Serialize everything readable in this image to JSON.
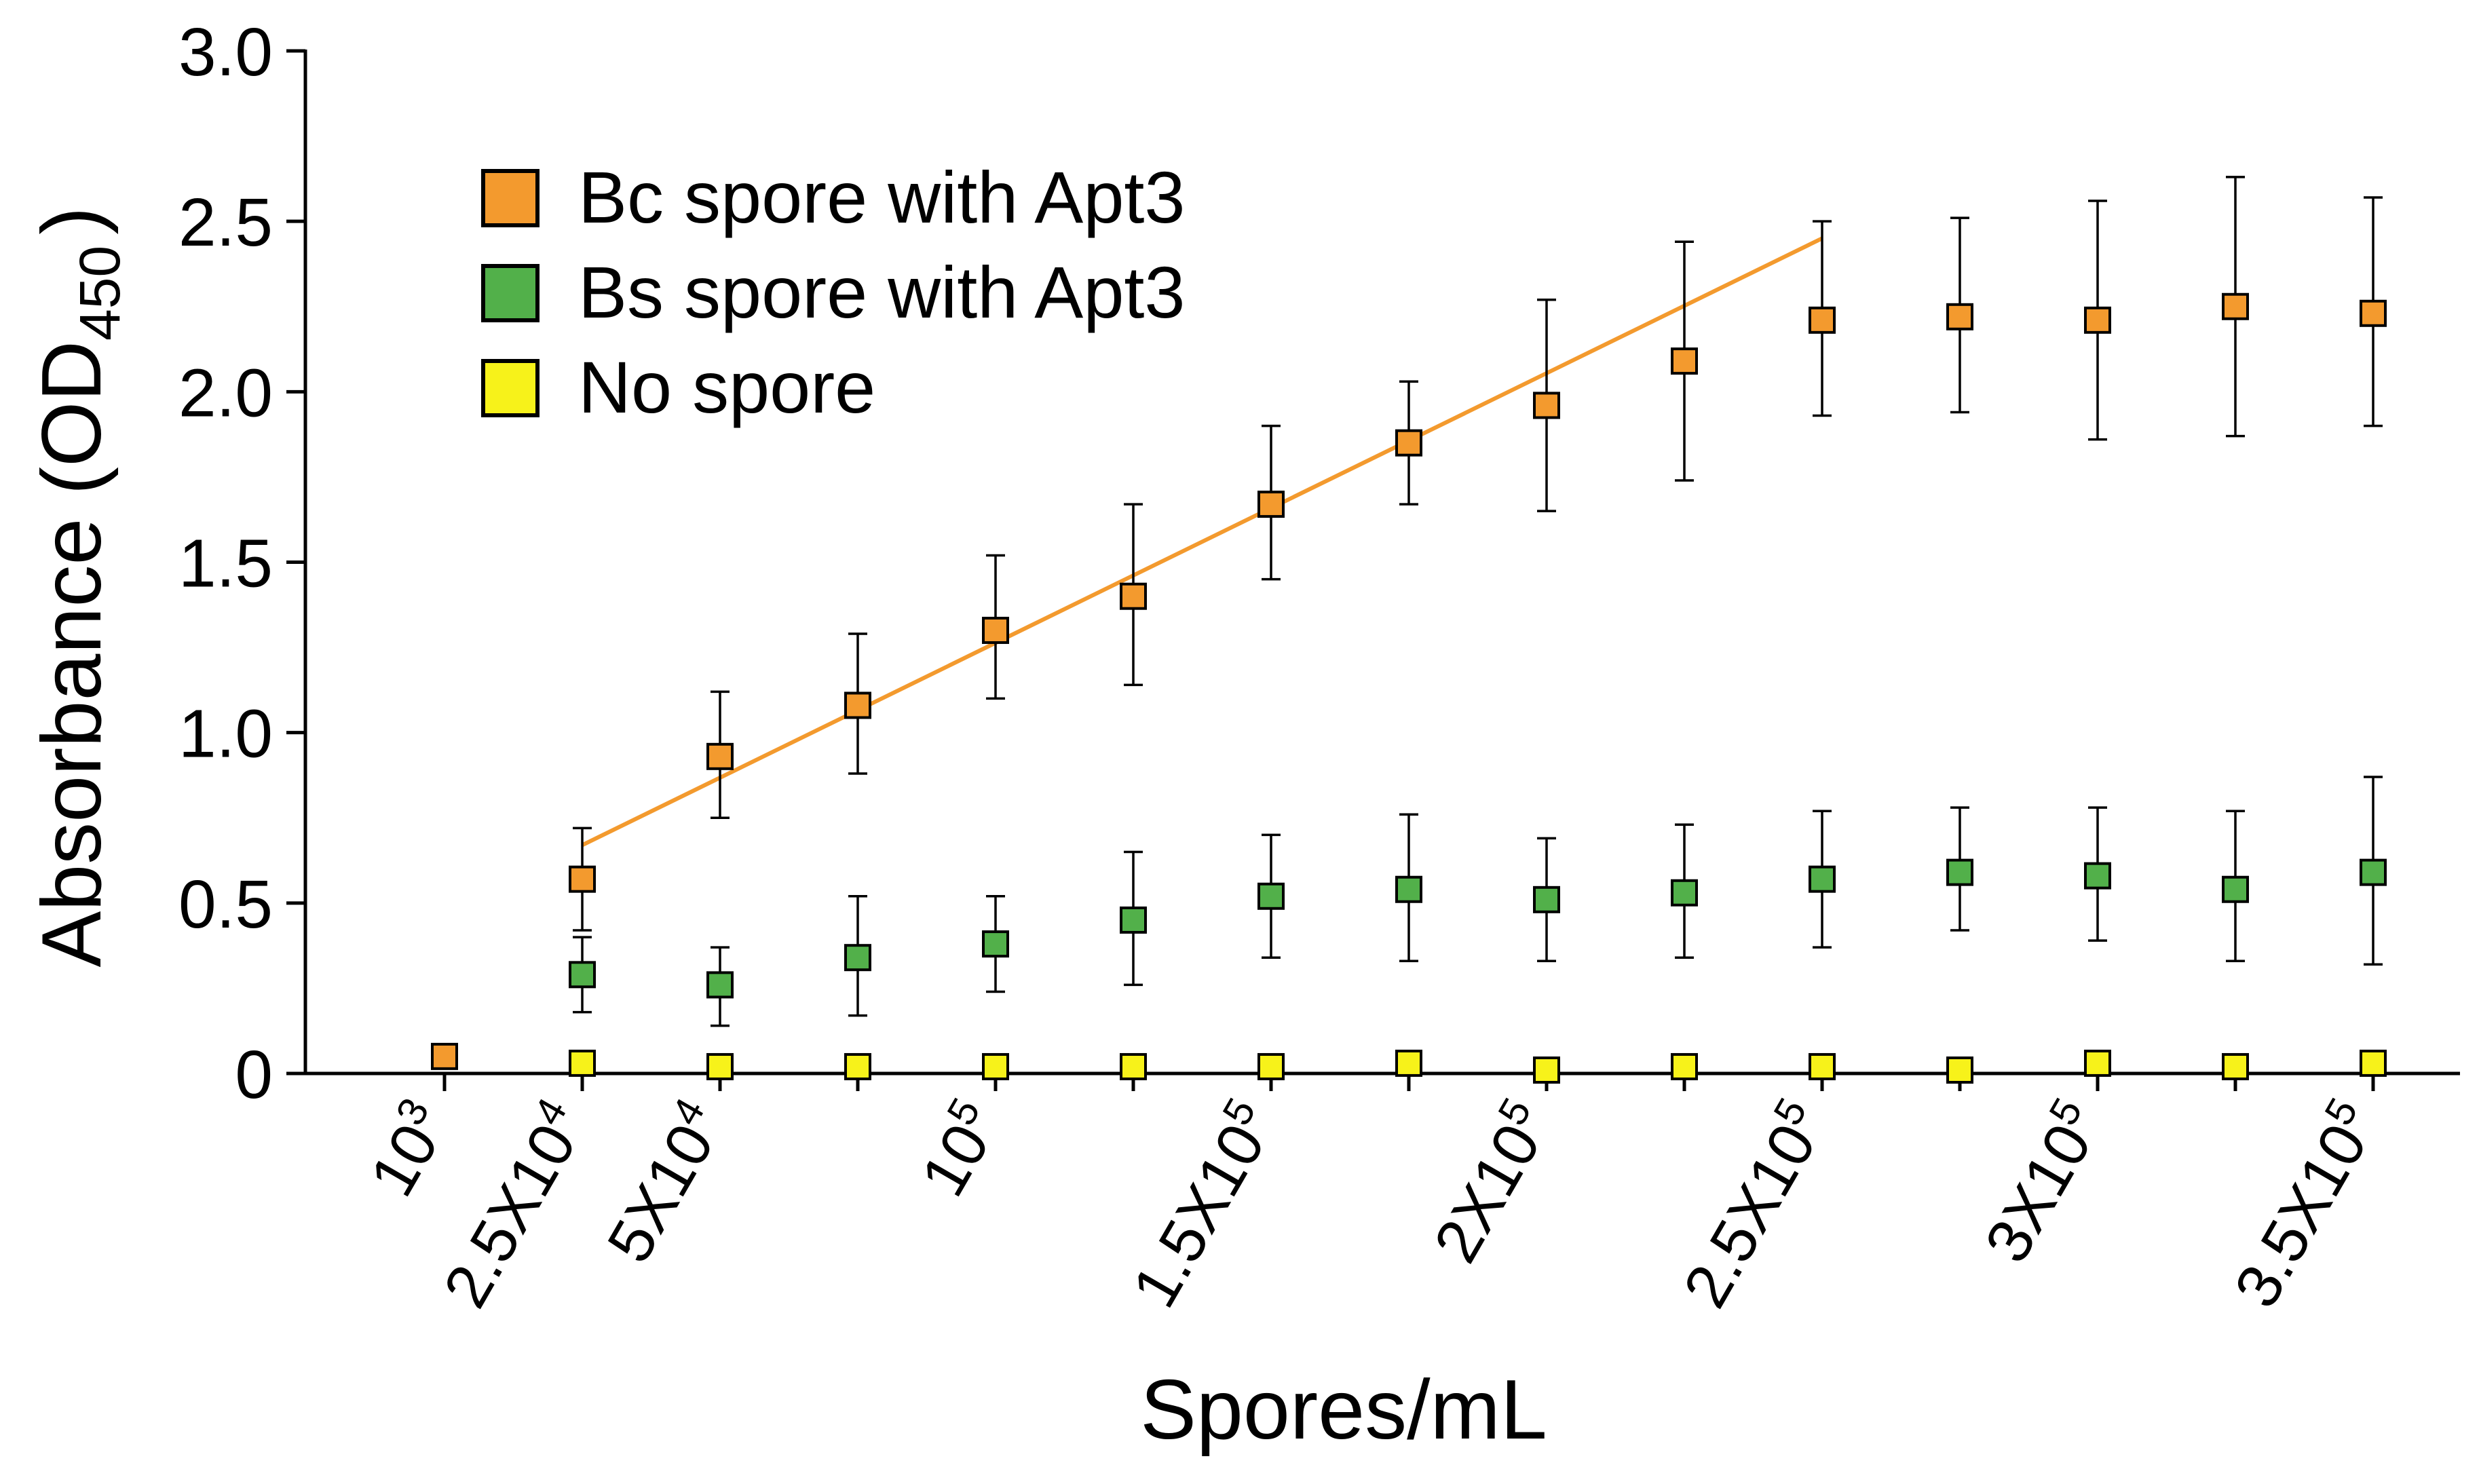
{
  "chart_data": {
    "type": "scatter",
    "title": "",
    "xlabel": "Spores/mL",
    "ylabel": {
      "main": "Absorbance (OD",
      "subscript": "450",
      "close": ")"
    },
    "ylim": [
      0,
      3.0
    ],
    "yticks": [
      0,
      0.5,
      1.0,
      1.5,
      2.0,
      2.5,
      3.0
    ],
    "ytick_labels": [
      "0",
      "0.5",
      "1.0",
      "1.5",
      "2.0",
      "2.5",
      "3.0"
    ],
    "x_positions": [
      1,
      2,
      3,
      4,
      5,
      6,
      7,
      8,
      9,
      10,
      11,
      12,
      13,
      14,
      15
    ],
    "x_tick_labels": [
      {
        "x": 1,
        "base": "10",
        "exp": "3"
      },
      {
        "x": 2,
        "base": "2.5X10",
        "exp": "4"
      },
      {
        "x": 3,
        "base": "5X10",
        "exp": "4"
      },
      {
        "x": 5,
        "base": "10",
        "exp": "5"
      },
      {
        "x": 7,
        "base": "1.5X10",
        "exp": "5"
      },
      {
        "x": 9,
        "base": "2X10",
        "exp": "5"
      },
      {
        "x": 11,
        "base": "2.5X10",
        "exp": "5"
      },
      {
        "x": 13,
        "base": "3X10",
        "exp": "5"
      },
      {
        "x": 15,
        "base": "3.5X10",
        "exp": "5"
      }
    ],
    "series": [
      {
        "name": "Bc spore with Apt3",
        "color": "#F39A2E",
        "x": [
          1,
          2,
          3,
          4,
          5,
          6,
          7,
          8,
          9,
          10,
          11,
          12,
          13,
          14,
          15
        ],
        "values": [
          0.05,
          0.57,
          0.93,
          1.08,
          1.3,
          1.4,
          1.67,
          1.85,
          1.96,
          2.09,
          2.21,
          2.22,
          2.21,
          2.25,
          2.23
        ],
        "err_upper": [
          null,
          0.72,
          1.12,
          1.29,
          1.52,
          1.67,
          1.9,
          2.03,
          2.27,
          2.44,
          2.5,
          2.51,
          2.56,
          2.63,
          2.57
        ],
        "err_lower": [
          null,
          0.42,
          0.75,
          0.88,
          1.1,
          1.14,
          1.45,
          1.67,
          1.65,
          1.74,
          1.93,
          1.94,
          1.86,
          1.87,
          1.9
        ],
        "trendline": {
          "x": [
            2,
            11
          ],
          "y": [
            0.67,
            2.45
          ]
        }
      },
      {
        "name": "Bs spore with Apt3",
        "color": "#52B04A",
        "x": [
          2,
          3,
          4,
          5,
          6,
          7,
          8,
          9,
          10,
          11,
          12,
          13,
          14,
          15
        ],
        "values": [
          0.29,
          0.26,
          0.34,
          0.38,
          0.45,
          0.52,
          0.54,
          0.51,
          0.53,
          0.57,
          0.59,
          0.58,
          0.54,
          0.59
        ],
        "err_upper": [
          0.4,
          0.37,
          0.52,
          0.52,
          0.65,
          0.7,
          0.76,
          0.69,
          0.73,
          0.77,
          0.78,
          0.78,
          0.77,
          0.87
        ],
        "err_lower": [
          0.18,
          0.14,
          0.17,
          0.24,
          0.26,
          0.34,
          0.33,
          0.33,
          0.34,
          0.37,
          0.42,
          0.39,
          0.33,
          0.32
        ]
      },
      {
        "name": "No spore",
        "color": "#F7F21A",
        "x": [
          2,
          3,
          4,
          5,
          6,
          7,
          8,
          9,
          10,
          11,
          12,
          13,
          14,
          15
        ],
        "values": [
          0.03,
          0.02,
          0.02,
          0.02,
          0.02,
          0.02,
          0.03,
          0.01,
          0.02,
          0.02,
          0.01,
          0.03,
          0.02,
          0.03
        ]
      }
    ],
    "legend": {
      "placement": "top-left",
      "entries": [
        {
          "label": "Bc spore with Apt3",
          "color": "#F39A2E"
        },
        {
          "label": "Bs spore with Apt3",
          "color": "#52B04A"
        },
        {
          "label": "No spore",
          "color": "#F7F21A"
        }
      ]
    },
    "grid": false
  }
}
